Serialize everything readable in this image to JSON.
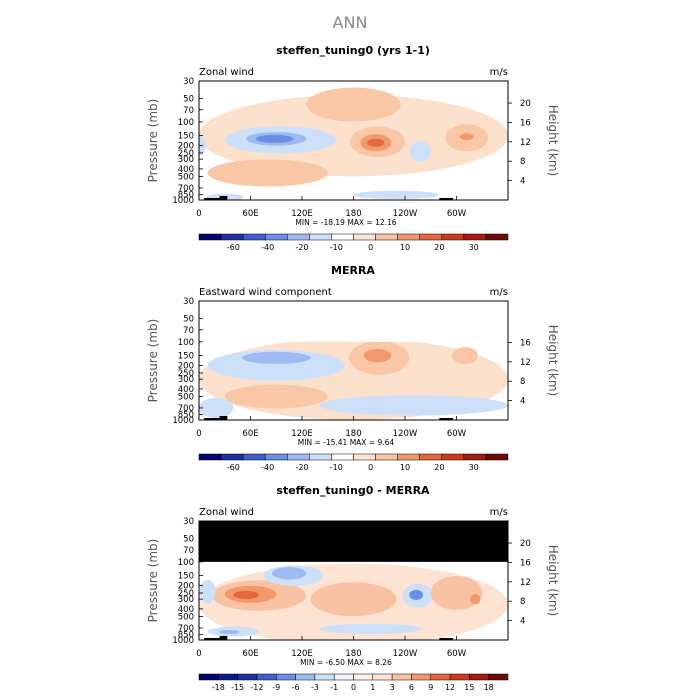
{
  "figure_title": "ANN",
  "left_axis_label": "Pressure (mb)",
  "right_axis_label": "Height (km)",
  "chart_data": [
    {
      "type": "contour",
      "title": "steffen_tuning0 (yrs 1-1)",
      "subtitle_left": "Zonal wind",
      "subtitle_right": "m/s",
      "x_ticks": [
        "0",
        "60E",
        "120E",
        "180",
        "120W",
        "60W"
      ],
      "x_tick_lon": [
        0,
        60,
        120,
        180,
        240,
        300
      ],
      "xlim": [
        0,
        360
      ],
      "y_ticks": [
        "30",
        "50",
        "70",
        "100",
        "150",
        "200",
        "250",
        "300",
        "400",
        "500",
        "700",
        "850",
        "1000"
      ],
      "y_tick_p": [
        30,
        50,
        70,
        100,
        150,
        200,
        250,
        300,
        400,
        500,
        700,
        850,
        1000
      ],
      "ylim": [
        30,
        1000
      ],
      "height_ticks": [
        "4",
        "8",
        "12",
        "16",
        "20"
      ],
      "height_km": [
        4,
        8,
        12,
        16,
        20
      ],
      "stats_text": "MIN = -18.19   MAX =  12.16",
      "colorbar_labels": [
        "-60",
        "-40",
        "-20",
        "-10",
        "0",
        "10",
        "20",
        "30"
      ],
      "colorbar_colors": [
        "#05056e",
        "#1e2fa0",
        "#3d5fd0",
        "#6a8ee6",
        "#9dbbf2",
        "#cde0fa",
        "#ffffff",
        "#fde3d2",
        "#f9c3a3",
        "#f2986d",
        "#e5683c",
        "#cc3a1c",
        "#a41a0d",
        "#6e0b05"
      ],
      "has_topo_band": false,
      "fields": [
        {
          "color": "#fbe0cc",
          "lon": 180,
          "p": 150,
          "rx": 180,
          "rp": 1.2
        },
        {
          "color": "#f9c7a6",
          "lon": 180,
          "p": 60,
          "rx": 55,
          "rp": 0.5
        },
        {
          "color": "#cde0fa",
          "lon": 95,
          "p": 170,
          "rx": 65,
          "rp": 0.4
        },
        {
          "color": "#9dbbf2",
          "lon": 90,
          "p": 165,
          "rx": 35,
          "rp": 0.2
        },
        {
          "color": "#6a8ee6",
          "lon": 88,
          "p": 165,
          "rx": 22,
          "rp": 0.12
        },
        {
          "color": "#f9c7a6",
          "lon": 208,
          "p": 180,
          "rx": 32,
          "rp": 0.45
        },
        {
          "color": "#f2986d",
          "lon": 206,
          "p": 185,
          "rx": 18,
          "rp": 0.25
        },
        {
          "color": "#e5683c",
          "lon": 206,
          "p": 185,
          "rx": 10,
          "rp": 0.12
        },
        {
          "color": "#f9c7a6",
          "lon": 312,
          "p": 160,
          "rx": 25,
          "rp": 0.4
        },
        {
          "color": "#f2986d",
          "lon": 312,
          "p": 155,
          "rx": 8,
          "rp": 0.1
        },
        {
          "color": "#cde0fa",
          "lon": 258,
          "p": 240,
          "rx": 12,
          "rp": 0.3
        },
        {
          "color": "#cde0fa",
          "lon": 0,
          "p": 200,
          "rx": 8,
          "rp": 0.3
        },
        {
          "color": "#f9c7a6",
          "lon": 80,
          "p": 450,
          "rx": 70,
          "rp": 0.4
        },
        {
          "color": "#cde0fa",
          "lon": 230,
          "p": 860,
          "rx": 50,
          "rp": 0.12
        },
        {
          "color": "#cde0fa",
          "lon": 30,
          "p": 920,
          "rx": 22,
          "rp": 0.1
        }
      ]
    },
    {
      "type": "contour",
      "title": "MERRA",
      "subtitle_left": "Eastward wind component",
      "subtitle_right": "m/s",
      "x_ticks": [
        "0",
        "60E",
        "120E",
        "180",
        "120W",
        "60W"
      ],
      "x_tick_lon": [
        0,
        60,
        120,
        180,
        240,
        300
      ],
      "xlim": [
        0,
        360
      ],
      "y_ticks": [
        "30",
        "50",
        "70",
        "100",
        "150",
        "200",
        "250",
        "300",
        "400",
        "500",
        "700",
        "850",
        "1000"
      ],
      "y_tick_p": [
        30,
        50,
        70,
        100,
        150,
        200,
        250,
        300,
        400,
        500,
        700,
        850,
        1000
      ],
      "ylim": [
        30,
        1000
      ],
      "height_ticks": [
        "4",
        "8",
        "12",
        "16"
      ],
      "height_km": [
        4,
        8,
        12,
        16
      ],
      "stats_text": "MIN = -15.41   MAX =  9.64",
      "colorbar_labels": [
        "-60",
        "-40",
        "-20",
        "-10",
        "0",
        "10",
        "20",
        "30"
      ],
      "colorbar_colors": [
        "#05056e",
        "#1e2fa0",
        "#3d5fd0",
        "#6a8ee6",
        "#9dbbf2",
        "#cde0fa",
        "#ffffff",
        "#fde3d2",
        "#f9c3a3",
        "#f2986d",
        "#e5683c",
        "#cc3a1c",
        "#a41a0d",
        "#6e0b05"
      ],
      "has_topo_band": false,
      "data_top_p": 100,
      "fields": [
        {
          "color": "#fbe0cc",
          "lon": 180,
          "p": 300,
          "rx": 180,
          "rp": 1.2
        },
        {
          "color": "#cde0fa",
          "lon": 90,
          "p": 200,
          "rx": 80,
          "rp": 0.45
        },
        {
          "color": "#9dbbf2",
          "lon": 90,
          "p": 160,
          "rx": 40,
          "rp": 0.18
        },
        {
          "color": "#f9c7a6",
          "lon": 210,
          "p": 160,
          "rx": 35,
          "rp": 0.5
        },
        {
          "color": "#f2986d",
          "lon": 208,
          "p": 150,
          "rx": 16,
          "rp": 0.2
        },
        {
          "color": "#f9c7a6",
          "lon": 310,
          "p": 150,
          "rx": 15,
          "rp": 0.25
        },
        {
          "color": "#f9c7a6",
          "lon": 90,
          "p": 500,
          "rx": 60,
          "rp": 0.35
        },
        {
          "color": "#cde0fa",
          "lon": 250,
          "p": 650,
          "rx": 110,
          "rp": 0.3
        },
        {
          "color": "#cde0fa",
          "lon": 20,
          "p": 700,
          "rx": 20,
          "rp": 0.3
        }
      ]
    },
    {
      "type": "contour",
      "title": "steffen_tuning0 - MERRA",
      "subtitle_left": "Zonal wind",
      "subtitle_right": "m/s",
      "x_ticks": [
        "0",
        "60E",
        "120E",
        "180",
        "120W",
        "60W"
      ],
      "x_tick_lon": [
        0,
        60,
        120,
        180,
        240,
        300
      ],
      "xlim": [
        0,
        360
      ],
      "y_ticks": [
        "30",
        "50",
        "70",
        "100",
        "150",
        "200",
        "250",
        "300",
        "400",
        "500",
        "700",
        "850",
        "1000"
      ],
      "y_tick_p": [
        30,
        50,
        70,
        100,
        150,
        200,
        250,
        300,
        400,
        500,
        700,
        850,
        1000
      ],
      "ylim": [
        30,
        1000
      ],
      "height_ticks": [
        "4",
        "8",
        "12",
        "16",
        "20"
      ],
      "height_km": [
        4,
        8,
        12,
        16,
        20
      ],
      "stats_text": "MIN = -6.50   MAX =  8.26",
      "colorbar_labels": [
        "-18",
        "-15",
        "-12",
        "-9",
        "-6",
        "-3",
        "-1",
        "0",
        "1",
        "3",
        "6",
        "9",
        "12",
        "15",
        "18"
      ],
      "colorbar_colors": [
        "#05056e",
        "#0f1a8a",
        "#1e2fa0",
        "#3d5fd0",
        "#6a8ee6",
        "#9dbbf2",
        "#cde0fa",
        "#eef4fe",
        "#fdf0e6",
        "#fde3d2",
        "#f9c3a3",
        "#f2986d",
        "#e5683c",
        "#cc3a1c",
        "#a41a0d",
        "#6e0b05"
      ],
      "has_topo_band": true,
      "topo_band_range_p": [
        30,
        100
      ],
      "fields": [
        {
          "color": "#fde3d2",
          "lon": 180,
          "p": 350,
          "rx": 180,
          "rp": 1.2
        },
        {
          "color": "#f9c3a3",
          "lon": 70,
          "p": 270,
          "rx": 55,
          "rp": 0.45
        },
        {
          "color": "#f2986d",
          "lon": 60,
          "p": 260,
          "rx": 30,
          "rp": 0.25
        },
        {
          "color": "#e5683c",
          "lon": 55,
          "p": 265,
          "rx": 15,
          "rp": 0.12
        },
        {
          "color": "#cde0fa",
          "lon": 110,
          "p": 150,
          "rx": 35,
          "rp": 0.3
        },
        {
          "color": "#9dbbf2",
          "lon": 105,
          "p": 140,
          "rx": 20,
          "rp": 0.18
        },
        {
          "color": "#f9c3a3",
          "lon": 180,
          "p": 300,
          "rx": 50,
          "rp": 0.5
        },
        {
          "color": "#cde0fa",
          "lon": 255,
          "p": 270,
          "rx": 18,
          "rp": 0.35
        },
        {
          "color": "#6a8ee6",
          "lon": 253,
          "p": 265,
          "rx": 8,
          "rp": 0.15
        },
        {
          "color": "#f9c3a3",
          "lon": 300,
          "p": 250,
          "rx": 30,
          "rp": 0.5
        },
        {
          "color": "#f2986d",
          "lon": 322,
          "p": 300,
          "rx": 6,
          "rp": 0.15
        },
        {
          "color": "#cde0fa",
          "lon": 10,
          "p": 240,
          "rx": 9,
          "rp": 0.35
        },
        {
          "color": "#cde0fa",
          "lon": 40,
          "p": 780,
          "rx": 30,
          "rp": 0.15
        },
        {
          "color": "#9dbbf2",
          "lon": 35,
          "p": 790,
          "rx": 12,
          "rp": 0.06
        },
        {
          "color": "#cde0fa",
          "lon": 200,
          "p": 720,
          "rx": 60,
          "rp": 0.15
        }
      ]
    }
  ]
}
